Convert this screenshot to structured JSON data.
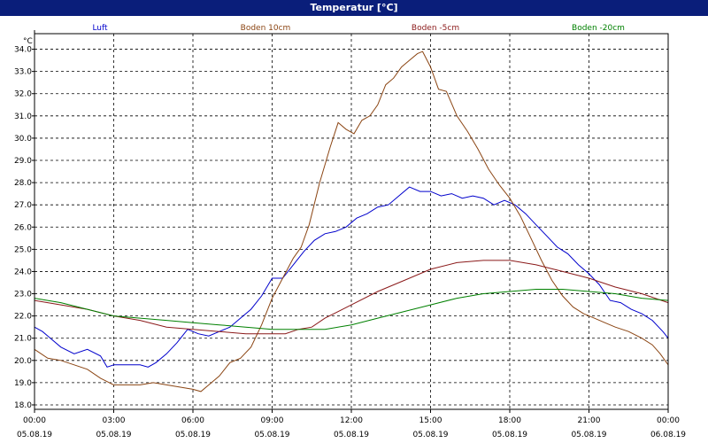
{
  "window": {
    "title": "Temperatur [°C]"
  },
  "chart_data": {
    "type": "line",
    "title": "Temperatur [°C]",
    "ylabel": "°C",
    "xlabel": "",
    "ylim": [
      17.8,
      34.7
    ],
    "xlim": [
      0,
      24
    ],
    "grid": true,
    "legend": "top",
    "y_ticks": [
      18.0,
      19.0,
      20.0,
      21.0,
      22.0,
      23.0,
      24.0,
      25.0,
      26.0,
      27.0,
      28.0,
      29.0,
      30.0,
      31.0,
      32.0,
      33.0,
      34.0
    ],
    "x_ticks": [
      {
        "x": 0,
        "time": "00:00",
        "date": "05.08.19"
      },
      {
        "x": 3,
        "time": "03:00",
        "date": "05.08.19"
      },
      {
        "x": 6,
        "time": "06:00",
        "date": "05.08.19"
      },
      {
        "x": 9,
        "time": "09:00",
        "date": "05.08.19"
      },
      {
        "x": 12,
        "time": "12:00",
        "date": "05.08.19"
      },
      {
        "x": 15,
        "time": "15:00",
        "date": "05.08.19"
      },
      {
        "x": 18,
        "time": "18:00",
        "date": "05.08.19"
      },
      {
        "x": 21,
        "time": "21:00",
        "date": "05.08.19"
      },
      {
        "x": 24,
        "time": "00:00",
        "date": "06.08.19"
      }
    ],
    "series": [
      {
        "name": "Luft",
        "color": "#0000cc",
        "points": [
          [
            0,
            21.5
          ],
          [
            0.3,
            21.3
          ],
          [
            0.6,
            21.0
          ],
          [
            1.0,
            20.6
          ],
          [
            1.5,
            20.3
          ],
          [
            2.0,
            20.5
          ],
          [
            2.5,
            20.2
          ],
          [
            2.75,
            19.7
          ],
          [
            3.0,
            19.8
          ],
          [
            3.5,
            19.8
          ],
          [
            4.0,
            19.8
          ],
          [
            4.3,
            19.7
          ],
          [
            4.6,
            19.9
          ],
          [
            5.0,
            20.3
          ],
          [
            5.4,
            20.8
          ],
          [
            5.8,
            21.4
          ],
          [
            6.2,
            21.2
          ],
          [
            6.6,
            21.1
          ],
          [
            7.0,
            21.3
          ],
          [
            7.4,
            21.5
          ],
          [
            7.8,
            21.9
          ],
          [
            8.2,
            22.3
          ],
          [
            8.6,
            22.9
          ],
          [
            9.0,
            23.7
          ],
          [
            9.4,
            23.7
          ],
          [
            9.8,
            24.3
          ],
          [
            10.2,
            24.9
          ],
          [
            10.6,
            25.4
          ],
          [
            11.0,
            25.7
          ],
          [
            11.4,
            25.8
          ],
          [
            11.8,
            26.0
          ],
          [
            12.2,
            26.4
          ],
          [
            12.6,
            26.6
          ],
          [
            13.0,
            26.9
          ],
          [
            13.4,
            27.0
          ],
          [
            13.8,
            27.4
          ],
          [
            14.2,
            27.8
          ],
          [
            14.6,
            27.6
          ],
          [
            15.0,
            27.6
          ],
          [
            15.4,
            27.4
          ],
          [
            15.8,
            27.5
          ],
          [
            16.2,
            27.3
          ],
          [
            16.6,
            27.4
          ],
          [
            17.0,
            27.3
          ],
          [
            17.4,
            27.0
          ],
          [
            17.8,
            27.2
          ],
          [
            18.2,
            27.0
          ],
          [
            18.6,
            26.6
          ],
          [
            19.0,
            26.1
          ],
          [
            19.4,
            25.6
          ],
          [
            19.8,
            25.1
          ],
          [
            20.2,
            24.8
          ],
          [
            20.6,
            24.3
          ],
          [
            21.0,
            23.9
          ],
          [
            21.4,
            23.4
          ],
          [
            21.8,
            22.7
          ],
          [
            22.2,
            22.6
          ],
          [
            22.6,
            22.3
          ],
          [
            23.0,
            22.1
          ],
          [
            23.4,
            21.8
          ],
          [
            23.8,
            21.3
          ],
          [
            24.0,
            21.0
          ]
        ]
      },
      {
        "name": "Boden 10cm",
        "color": "#8b4513",
        "points": [
          [
            0,
            20.5
          ],
          [
            0.5,
            20.1
          ],
          [
            1.0,
            20.0
          ],
          [
            1.5,
            19.8
          ],
          [
            2.0,
            19.6
          ],
          [
            2.5,
            19.2
          ],
          [
            3.0,
            18.9
          ],
          [
            3.5,
            18.9
          ],
          [
            4.0,
            18.9
          ],
          [
            4.5,
            19.0
          ],
          [
            5.0,
            18.9
          ],
          [
            5.5,
            18.8
          ],
          [
            6.0,
            18.7
          ],
          [
            6.3,
            18.6
          ],
          [
            6.7,
            19.0
          ],
          [
            7.0,
            19.3
          ],
          [
            7.4,
            19.9
          ],
          [
            7.8,
            20.1
          ],
          [
            8.2,
            20.6
          ],
          [
            8.6,
            21.6
          ],
          [
            9.0,
            22.8
          ],
          [
            9.4,
            23.7
          ],
          [
            9.8,
            24.6
          ],
          [
            10.1,
            25.1
          ],
          [
            10.4,
            26.1
          ],
          [
            10.8,
            28.0
          ],
          [
            11.2,
            29.6
          ],
          [
            11.5,
            30.7
          ],
          [
            11.8,
            30.4
          ],
          [
            12.1,
            30.2
          ],
          [
            12.4,
            30.8
          ],
          [
            12.7,
            31.0
          ],
          [
            13.0,
            31.5
          ],
          [
            13.3,
            32.4
          ],
          [
            13.6,
            32.7
          ],
          [
            13.9,
            33.2
          ],
          [
            14.2,
            33.5
          ],
          [
            14.5,
            33.8
          ],
          [
            14.7,
            33.9
          ],
          [
            15.0,
            33.2
          ],
          [
            15.3,
            32.2
          ],
          [
            15.6,
            32.1
          ],
          [
            16.0,
            31.0
          ],
          [
            16.4,
            30.3
          ],
          [
            16.8,
            29.5
          ],
          [
            17.2,
            28.6
          ],
          [
            17.6,
            27.9
          ],
          [
            18.0,
            27.3
          ],
          [
            18.4,
            26.5
          ],
          [
            18.8,
            25.5
          ],
          [
            19.2,
            24.5
          ],
          [
            19.6,
            23.6
          ],
          [
            20.0,
            22.9
          ],
          [
            20.4,
            22.4
          ],
          [
            20.8,
            22.1
          ],
          [
            21.2,
            21.9
          ],
          [
            21.6,
            21.7
          ],
          [
            22.0,
            21.5
          ],
          [
            22.5,
            21.3
          ],
          [
            23.0,
            21.0
          ],
          [
            23.4,
            20.7
          ],
          [
            23.7,
            20.3
          ],
          [
            24.0,
            19.8
          ]
        ]
      },
      {
        "name": "Boden -5cm",
        "color": "#8b1a1a",
        "points": [
          [
            0,
            22.7
          ],
          [
            1.0,
            22.5
          ],
          [
            2.0,
            22.3
          ],
          [
            3.0,
            22.0
          ],
          [
            4.0,
            21.8
          ],
          [
            5.0,
            21.5
          ],
          [
            6.0,
            21.4
          ],
          [
            7.0,
            21.3
          ],
          [
            8.0,
            21.2
          ],
          [
            9.0,
            21.2
          ],
          [
            9.5,
            21.2
          ],
          [
            10.0,
            21.4
          ],
          [
            10.5,
            21.5
          ],
          [
            11.0,
            21.9
          ],
          [
            12.0,
            22.5
          ],
          [
            13.0,
            23.1
          ],
          [
            14.0,
            23.6
          ],
          [
            15.0,
            24.1
          ],
          [
            16.0,
            24.4
          ],
          [
            17.0,
            24.5
          ],
          [
            18.0,
            24.5
          ],
          [
            19.0,
            24.3
          ],
          [
            20.0,
            24.0
          ],
          [
            21.0,
            23.7
          ],
          [
            22.0,
            23.3
          ],
          [
            23.0,
            23.0
          ],
          [
            24.0,
            22.6
          ]
        ]
      },
      {
        "name": "Boden -20cm",
        "color": "#008000",
        "points": [
          [
            0,
            22.8
          ],
          [
            1.0,
            22.6
          ],
          [
            2.0,
            22.3
          ],
          [
            3.0,
            22.0
          ],
          [
            4.0,
            21.9
          ],
          [
            5.0,
            21.8
          ],
          [
            6.0,
            21.7
          ],
          [
            7.0,
            21.6
          ],
          [
            8.0,
            21.5
          ],
          [
            9.0,
            21.4
          ],
          [
            10.0,
            21.4
          ],
          [
            11.0,
            21.4
          ],
          [
            12.0,
            21.6
          ],
          [
            13.0,
            21.9
          ],
          [
            14.0,
            22.2
          ],
          [
            15.0,
            22.5
          ],
          [
            16.0,
            22.8
          ],
          [
            17.0,
            23.0
          ],
          [
            18.0,
            23.1
          ],
          [
            19.0,
            23.2
          ],
          [
            20.0,
            23.2
          ],
          [
            21.0,
            23.1
          ],
          [
            22.0,
            23.0
          ],
          [
            23.0,
            22.8
          ],
          [
            24.0,
            22.7
          ]
        ]
      }
    ]
  }
}
